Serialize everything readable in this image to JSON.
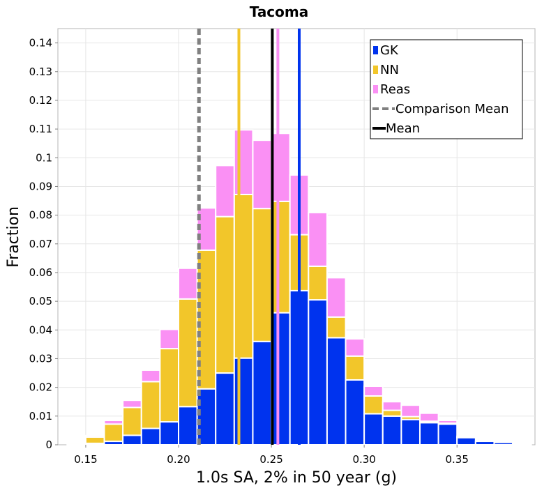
{
  "chart_data": {
    "type": "bar",
    "stacked": true,
    "title": "Tacoma",
    "xlabel": "1.0s SA, 2% in 50 year (g)",
    "ylabel": "Fraction",
    "xlim": [
      0.135,
      0.392
    ],
    "ylim": [
      0,
      0.145
    ],
    "grid": true,
    "legend_position": "top-right",
    "bin_width": 0.01,
    "bin_starts": [
      0.14,
      0.15,
      0.16,
      0.17,
      0.18,
      0.19,
      0.2,
      0.21,
      0.22,
      0.23,
      0.24,
      0.25,
      0.26,
      0.27,
      0.28,
      0.29,
      0.3,
      0.31,
      0.32,
      0.33,
      0.34,
      0.35,
      0.36,
      0.37,
      0.38
    ],
    "x_ticks": [
      0.15,
      0.2,
      0.25,
      0.3,
      0.35
    ],
    "x_tick_labels": [
      "0.15",
      "0.20",
      "0.25",
      "0.30",
      "0.35"
    ],
    "y_ticks": [
      0,
      0.01,
      0.02,
      0.03,
      0.04,
      0.05,
      0.06,
      0.07,
      0.08,
      0.09,
      0.1,
      0.11,
      0.12,
      0.13,
      0.14
    ],
    "y_tick_labels": [
      "0",
      "0.01",
      "0.02",
      "0.03",
      "0.04",
      "0.05",
      "0.06",
      "0.07",
      "0.08",
      "0.09",
      "0.1",
      "0.11",
      "0.12",
      "0.13",
      "0.14"
    ],
    "series": [
      {
        "name": "GK",
        "color": "#0033ee",
        "values": [
          0.0,
          0.0005,
          0.0012,
          0.0033,
          0.0057,
          0.008,
          0.0133,
          0.0195,
          0.025,
          0.0302,
          0.036,
          0.046,
          0.0537,
          0.0505,
          0.0373,
          0.0226,
          0.0108,
          0.01,
          0.0088,
          0.0077,
          0.0072,
          0.0025,
          0.0012,
          0.0008,
          0.0002
        ]
      },
      {
        "name": "NN",
        "color": "#f2c62a",
        "values": [
          0.0005,
          0.0022,
          0.006,
          0.0097,
          0.0163,
          0.0255,
          0.0375,
          0.0483,
          0.0545,
          0.057,
          0.0463,
          0.0388,
          0.0195,
          0.0117,
          0.0072,
          0.0083,
          0.0062,
          0.002,
          0.001,
          0.0005,
          0.0003,
          0.0001,
          0.0,
          0.0,
          0.0
        ]
      },
      {
        "name": "Reas",
        "color": "#fa90f4",
        "values": [
          0.0001,
          0.0005,
          0.0013,
          0.0025,
          0.004,
          0.0067,
          0.0107,
          0.0147,
          0.0178,
          0.0225,
          0.0238,
          0.0237,
          0.0208,
          0.0187,
          0.0137,
          0.006,
          0.0034,
          0.003,
          0.004,
          0.0028,
          0.001,
          0.0004,
          0.0,
          0.0,
          0.0
        ]
      }
    ],
    "vertical_lines": [
      {
        "name": "Comparison Mean",
        "x": 0.211,
        "color": "#808080",
        "style": "dashed"
      },
      {
        "name": "Mean",
        "x": 0.2505,
        "color": "#000000",
        "style": "solid"
      },
      {
        "name": "NN mean",
        "x": 0.2325,
        "color": "#f2c62a",
        "style": "solid"
      },
      {
        "name": "GK mean",
        "x": 0.265,
        "color": "#0033ee",
        "style": "solid"
      },
      {
        "name": "Reas mean",
        "x": 0.2535,
        "color": "#fa90f4",
        "style": "solid"
      }
    ],
    "legend": [
      {
        "label": "GK",
        "kind": "box",
        "color": "#0033ee"
      },
      {
        "label": "NN",
        "kind": "box",
        "color": "#f2c62a"
      },
      {
        "label": "Reas",
        "kind": "box",
        "color": "#fa90f4"
      },
      {
        "label": "Comparison Mean",
        "kind": "dashed",
        "color": "#808080"
      },
      {
        "label": "Mean",
        "kind": "line",
        "color": "#000000"
      }
    ]
  }
}
